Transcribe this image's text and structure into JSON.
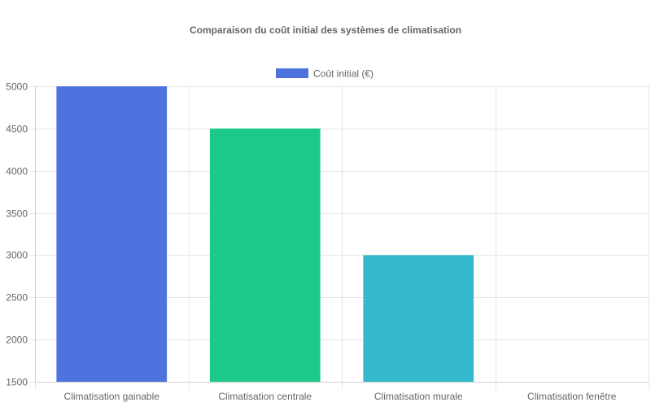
{
  "chart_data": {
    "type": "bar",
    "title": "Comparaison du coût initial des systèmes de climatisation",
    "categories": [
      "Climatisation gainable",
      "Climatisation centrale",
      "Climatisation murale",
      "Climatisation fenêtre"
    ],
    "series": [
      {
        "name": "Coût initial (€)",
        "values": [
          5000,
          4500,
          3000,
          1500
        ],
        "colors": [
          "#4e73df",
          "#1cc88a",
          "#36b9cc",
          "#f6c23e"
        ]
      }
    ],
    "legend": {
      "position": "top",
      "swatch_color": "#4e73df"
    },
    "ylim": [
      1500,
      5000
    ],
    "yticks": [
      1500,
      2000,
      2500,
      3000,
      3500,
      4000,
      4500,
      5000
    ],
    "grid": true
  }
}
